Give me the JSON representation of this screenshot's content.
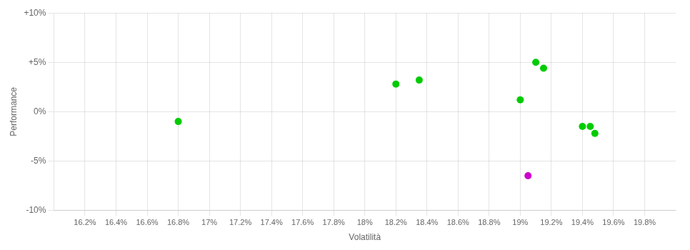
{
  "chart_data": {
    "type": "scatter",
    "xlabel": "Volatilità",
    "ylabel": "Performance",
    "xlim": [
      0.16,
      0.2
    ],
    "ylim": [
      -0.1,
      0.1
    ],
    "xticks": [
      {
        "value": 0.162,
        "label": "16.2%"
      },
      {
        "value": 0.164,
        "label": "16.4%"
      },
      {
        "value": 0.166,
        "label": "16.6%"
      },
      {
        "value": 0.168,
        "label": "16.8%"
      },
      {
        "value": 0.17,
        "label": "17%"
      },
      {
        "value": 0.172,
        "label": "17.2%"
      },
      {
        "value": 0.174,
        "label": "17.4%"
      },
      {
        "value": 0.176,
        "label": "17.6%"
      },
      {
        "value": 0.178,
        "label": "17.8%"
      },
      {
        "value": 0.18,
        "label": "18%"
      },
      {
        "value": 0.182,
        "label": "18.2%"
      },
      {
        "value": 0.184,
        "label": "18.4%"
      },
      {
        "value": 0.186,
        "label": "18.6%"
      },
      {
        "value": 0.188,
        "label": "18.8%"
      },
      {
        "value": 0.19,
        "label": "19%"
      },
      {
        "value": 0.192,
        "label": "19.2%"
      },
      {
        "value": 0.194,
        "label": "19.4%"
      },
      {
        "value": 0.196,
        "label": "19.6%"
      },
      {
        "value": 0.198,
        "label": "19.8%"
      }
    ],
    "yticks": [
      {
        "value": -0.1,
        "label": "-10%"
      },
      {
        "value": -0.05,
        "label": "-5%"
      },
      {
        "value": 0.0,
        "label": "0%"
      },
      {
        "value": 0.05,
        "label": "+5%"
      },
      {
        "value": 0.1,
        "label": "+10%"
      }
    ],
    "grid": true,
    "series": [
      {
        "color": "#00cc00",
        "x": [
          0.168,
          0.182,
          0.1835,
          0.19,
          0.191,
          0.1915,
          0.194,
          0.1945,
          0.1948
        ],
        "values": [
          -0.01,
          0.028,
          0.032,
          0.012,
          0.05,
          0.044,
          -0.015,
          -0.015,
          -0.022
        ]
      },
      {
        "color": "#cc00cc",
        "x": [
          0.1905
        ],
        "values": [
          -0.065
        ]
      }
    ]
  }
}
